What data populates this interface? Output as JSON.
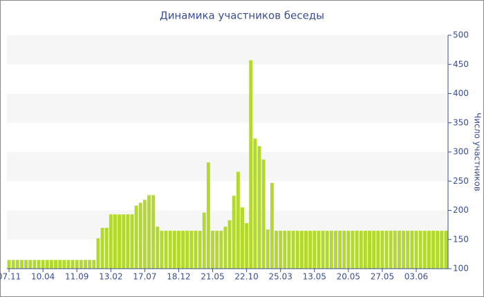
{
  "chart_data": {
    "type": "bar",
    "title": "Динамика участников беседы",
    "y_axis_label": "Число участников",
    "categories": [
      "07.11",
      null,
      null,
      null,
      null,
      null,
      null,
      null,
      "10.04",
      null,
      null,
      null,
      null,
      null,
      null,
      null,
      "11.09",
      null,
      null,
      null,
      null,
      null,
      null,
      null,
      "13.02",
      null,
      null,
      null,
      null,
      null,
      null,
      null,
      "17.07",
      null,
      null,
      null,
      null,
      null,
      null,
      null,
      "18.12",
      null,
      null,
      null,
      null,
      null,
      null,
      null,
      "21.05",
      null,
      null,
      null,
      null,
      null,
      null,
      null,
      "22.10",
      null,
      null,
      null,
      null,
      null,
      null,
      null,
      "25.03",
      null,
      null,
      null,
      null,
      null,
      null,
      null,
      "13.05",
      null,
      null,
      null,
      null,
      null,
      null,
      null,
      "20.05",
      null,
      null,
      null,
      null,
      null,
      null,
      null,
      "27.05",
      null,
      null,
      null,
      null,
      null,
      null,
      null,
      "03.06",
      null,
      null,
      null,
      null,
      null,
      null,
      null
    ],
    "values": [
      115,
      115,
      115,
      115,
      115,
      115,
      115,
      115,
      115,
      115,
      115,
      115,
      115,
      115,
      115,
      115,
      115,
      115,
      115,
      115,
      115,
      152,
      170,
      170,
      193,
      193,
      193,
      193,
      193,
      193,
      208,
      213,
      218,
      226,
      226,
      172,
      165,
      165,
      165,
      165,
      165,
      165,
      165,
      165,
      165,
      165,
      196,
      282,
      165,
      165,
      165,
      172,
      183,
      225,
      266,
      205,
      178,
      457,
      323,
      310,
      287,
      167,
      247,
      165,
      165,
      165,
      165,
      165,
      165,
      165,
      165,
      165,
      165,
      165,
      165,
      165,
      165,
      165,
      165,
      165,
      165,
      165,
      165,
      165,
      165,
      165,
      165,
      165,
      165,
      165,
      165,
      165,
      165,
      165,
      165,
      165,
      165,
      165,
      165,
      165,
      165,
      165,
      165,
      165
    ],
    "color": "#b3d92a",
    "ylim": [
      100,
      500
    ],
    "yticks": [
      100,
      150,
      200,
      250,
      300,
      350,
      400,
      450,
      500
    ],
    "grid": true,
    "y_axis_side": "right"
  }
}
